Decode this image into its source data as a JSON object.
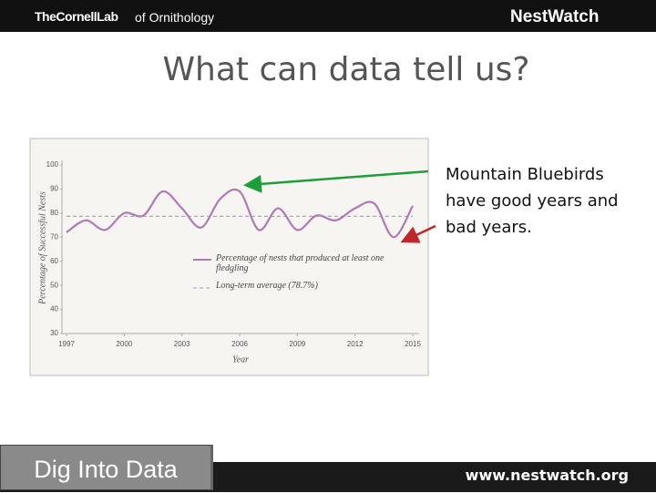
{
  "header": {
    "logo_left": "TheCornellLab",
    "logo_left_suffix": "of Ornithology",
    "logo_right": "NestWatch"
  },
  "slide_title": "What can data tell us?",
  "annotation": "Mountain Bluebirds have good years and bad years.",
  "footer": {
    "button": "Dig Into Data",
    "url": "www.nestwatch.org"
  },
  "chart_data": {
    "type": "line",
    "x_label": "Year",
    "y_label": "Percentage of Successful Nests",
    "x": [
      1997,
      1998,
      1999,
      2000,
      2001,
      2002,
      2003,
      2004,
      2005,
      2006,
      2007,
      2008,
      2009,
      2010,
      2011,
      2012,
      2013,
      2014,
      2015
    ],
    "series": [
      {
        "name": "Percentage of nests that produced at least one fledgling",
        "color": "#b07ab5",
        "values": [
          72,
          77,
          73,
          80,
          79,
          89,
          82,
          74,
          86,
          89,
          73,
          82,
          73,
          79,
          77,
          82,
          84,
          70,
          83
        ]
      }
    ],
    "reference_line": {
      "value": 78.7,
      "label": "Long-term average (78.7%)",
      "color": "#b493b8"
    },
    "xlim": [
      1997,
      2015
    ],
    "xticks": [
      1997,
      2000,
      2003,
      2006,
      2009,
      2012,
      2015
    ],
    "ylim": [
      30,
      100
    ],
    "yticks": [
      30,
      40,
      50,
      60,
      70,
      80,
      90,
      100
    ],
    "grid": false
  }
}
